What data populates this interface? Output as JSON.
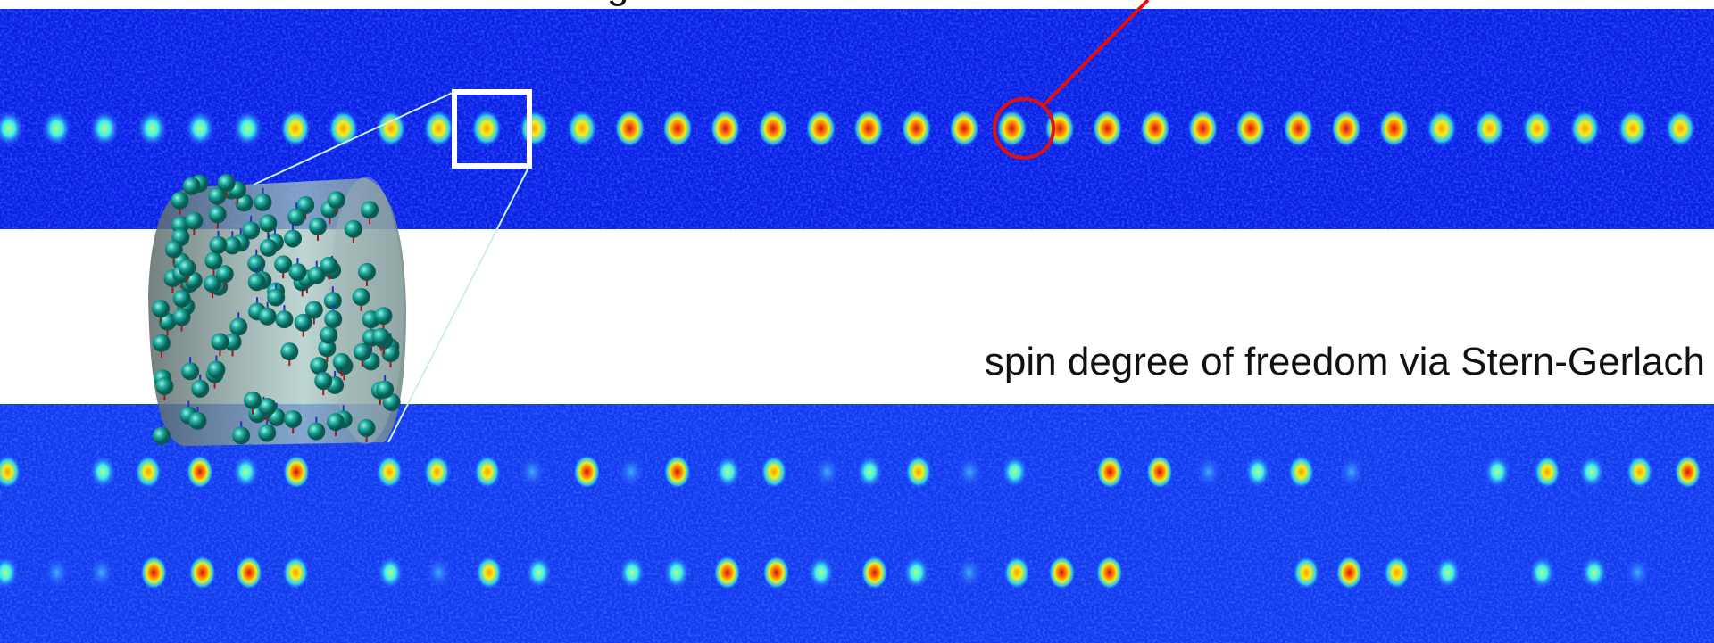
{
  "top_label": "g",
  "caption": "spin degree of freedom via Stern-Gerlach"
}
